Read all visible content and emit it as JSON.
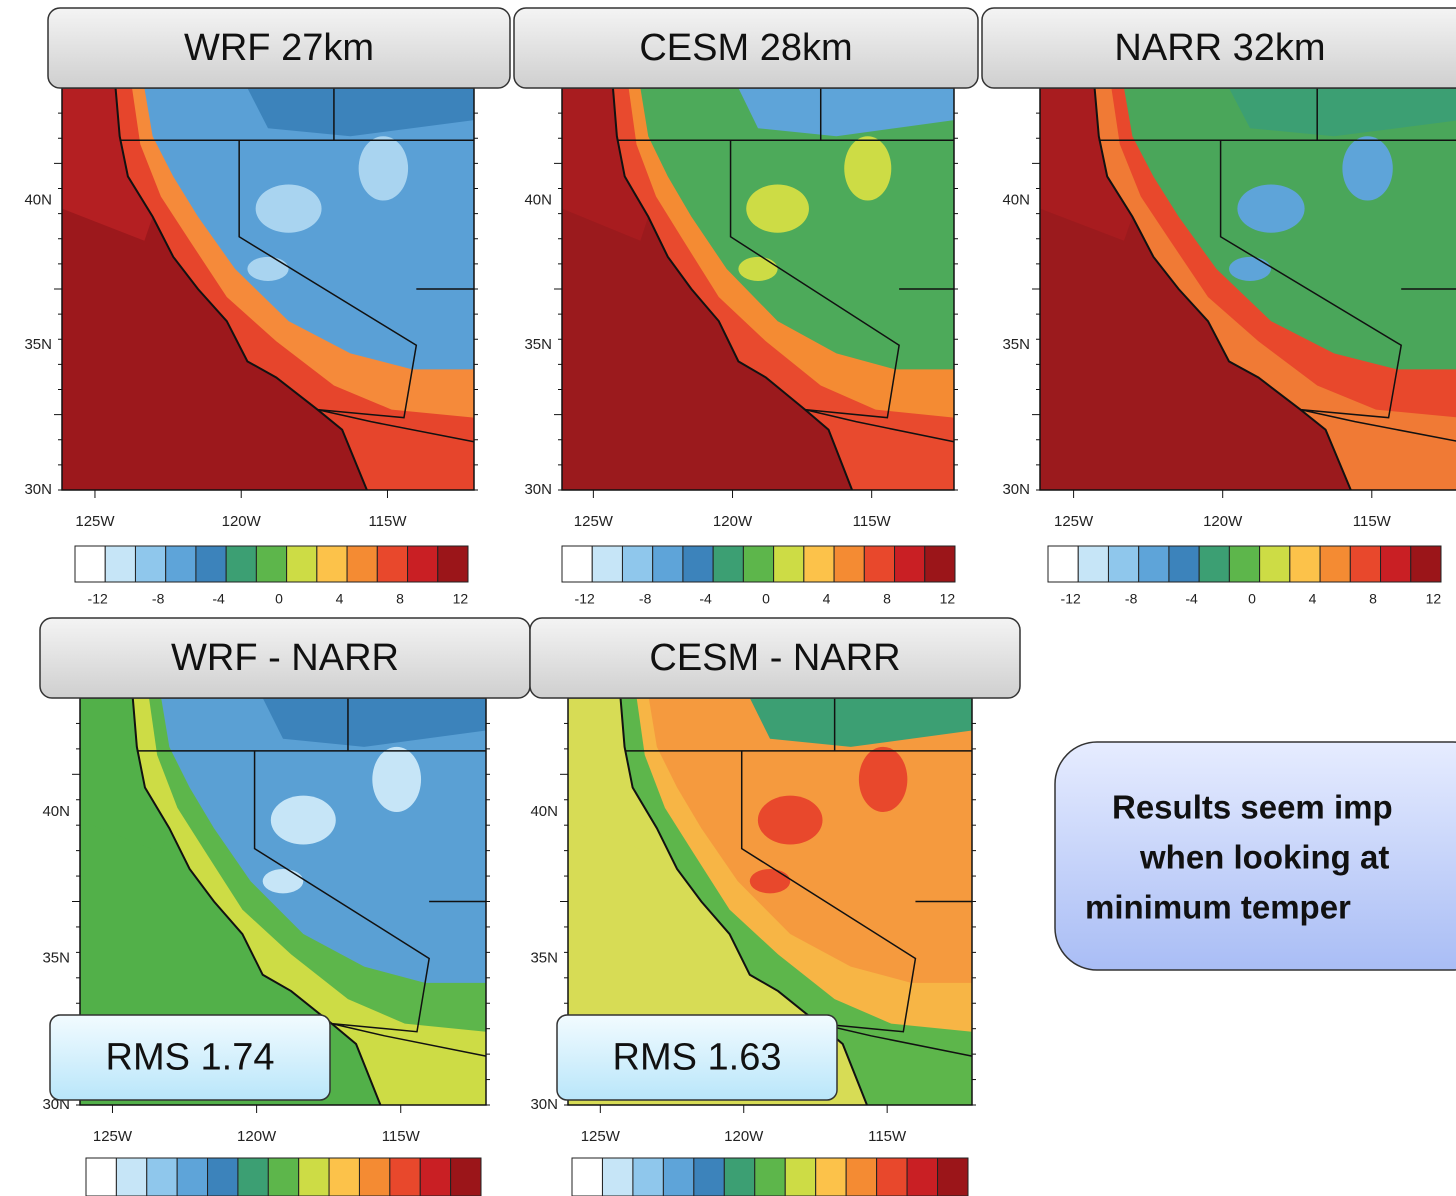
{
  "panels": [
    {
      "title": "WRF 27km",
      "lat_labels": [
        "40N",
        "35N",
        "30N"
      ],
      "lon_labels": [
        "125W",
        "120W",
        "115W"
      ],
      "colorbar_labels": [
        "-12",
        "-8",
        "-4",
        "0",
        "4",
        "8",
        "12"
      ]
    },
    {
      "title": "CESM 28km",
      "lat_labels": [
        "40N",
        "35N",
        "30N"
      ],
      "lon_labels": [
        "125W",
        "120W",
        "115W"
      ],
      "colorbar_labels": [
        "-12",
        "-8",
        "-4",
        "0",
        "4",
        "8",
        "12"
      ]
    },
    {
      "title": "NARR 32km",
      "lat_labels": [
        "40N",
        "35N",
        "30N"
      ],
      "lon_labels": [
        "125W",
        "120W",
        "115W"
      ],
      "colorbar_labels": [
        "-12",
        "-8",
        "-4",
        "0",
        "4",
        "8",
        "12"
      ]
    },
    {
      "title": "WRF - NARR",
      "lat_labels": [
        "40N",
        "35N",
        "30N"
      ],
      "lon_labels": [
        "125W",
        "120W",
        "115W"
      ],
      "rms": "RMS 1.74"
    },
    {
      "title": "CESM - NARR",
      "lat_labels": [
        "40N",
        "35N",
        "30N"
      ],
      "lon_labels": [
        "125W",
        "120W",
        "115W"
      ],
      "rms": "RMS 1.63"
    }
  ],
  "colorbar_colors": [
    "#ffffff",
    "#c6e5f7",
    "#8fc7ec",
    "#5ea4d9",
    "#3c83bb",
    "#3c9f73",
    "#5db64b",
    "#cddc45",
    "#fcc24a",
    "#f48b33",
    "#e8482c",
    "#c91f24",
    "#9b1519"
  ],
  "callout": {
    "lines": [
      "Results seem imp",
      "when looking at",
      "minimum temper"
    ]
  }
}
